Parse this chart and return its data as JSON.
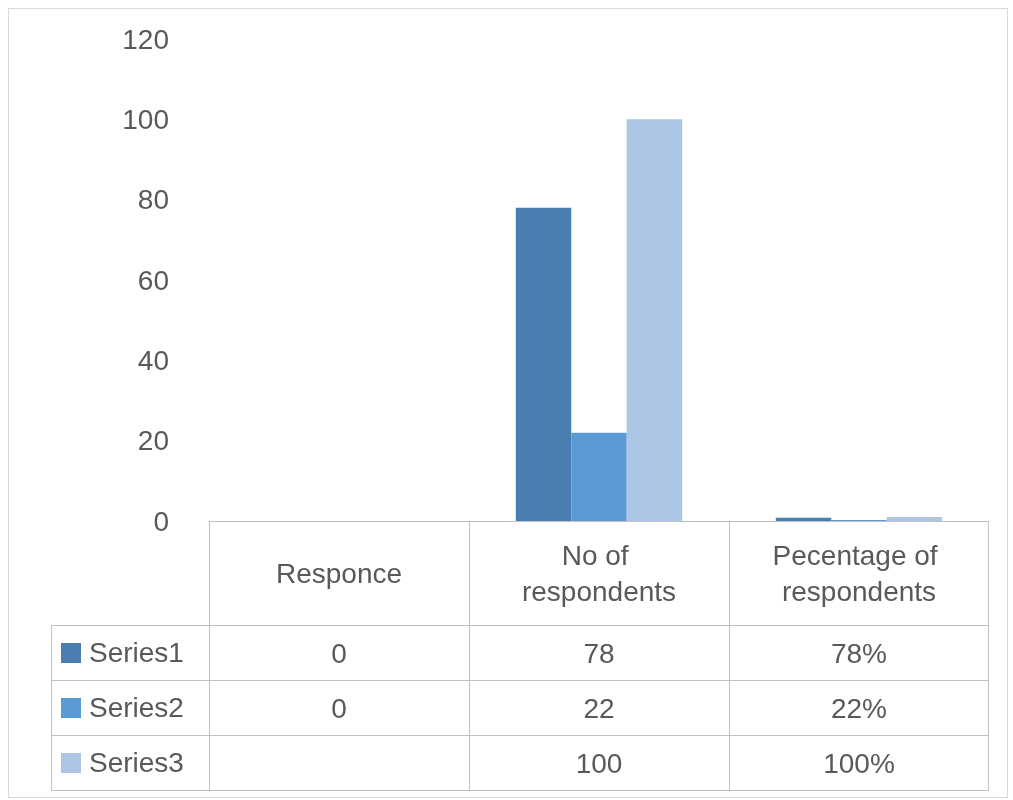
{
  "chart_data": {
    "type": "bar",
    "categories": [
      "Responce",
      "No of respondents",
      "Pecentage of respondents"
    ],
    "series": [
      {
        "name": "Series1",
        "color": "#4a7eb0",
        "values": [
          0,
          78,
          0.78
        ],
        "value_labels": [
          "0",
          "78",
          "78%"
        ]
      },
      {
        "name": "Series2",
        "color": "#5b9bd5",
        "values": [
          0,
          22,
          0.22
        ],
        "value_labels": [
          "0",
          "22",
          "22%"
        ]
      },
      {
        "name": "Series3",
        "color": "#adc6e5",
        "values": [
          null,
          100,
          1
        ],
        "value_labels": [
          null,
          "100",
          "100%"
        ]
      }
    ],
    "ylim": [
      0,
      120
    ],
    "yticks": [
      0,
      20,
      40,
      60,
      80,
      100,
      120
    ],
    "grid": false,
    "legend": "bottom"
  }
}
